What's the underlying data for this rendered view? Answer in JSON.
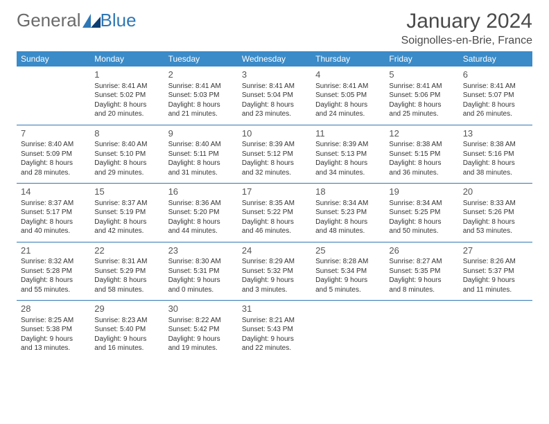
{
  "brand": {
    "part1": "General",
    "part2": "Blue"
  },
  "title": "January 2024",
  "location": "Soignolles-en-Brie, France",
  "colors": {
    "headerBg": "#3b8bc8",
    "rule": "#2f77b6",
    "text": "#333",
    "titleText": "#4a4a4a"
  },
  "weekdays": [
    "Sunday",
    "Monday",
    "Tuesday",
    "Wednesday",
    "Thursday",
    "Friday",
    "Saturday"
  ],
  "weeks": [
    [
      {
        "empty": true
      },
      {
        "day": "1",
        "sunrise": "Sunrise: 8:41 AM",
        "sunset": "Sunset: 5:02 PM",
        "dl1": "Daylight: 8 hours",
        "dl2": "and 20 minutes."
      },
      {
        "day": "2",
        "sunrise": "Sunrise: 8:41 AM",
        "sunset": "Sunset: 5:03 PM",
        "dl1": "Daylight: 8 hours",
        "dl2": "and 21 minutes."
      },
      {
        "day": "3",
        "sunrise": "Sunrise: 8:41 AM",
        "sunset": "Sunset: 5:04 PM",
        "dl1": "Daylight: 8 hours",
        "dl2": "and 23 minutes."
      },
      {
        "day": "4",
        "sunrise": "Sunrise: 8:41 AM",
        "sunset": "Sunset: 5:05 PM",
        "dl1": "Daylight: 8 hours",
        "dl2": "and 24 minutes."
      },
      {
        "day": "5",
        "sunrise": "Sunrise: 8:41 AM",
        "sunset": "Sunset: 5:06 PM",
        "dl1": "Daylight: 8 hours",
        "dl2": "and 25 minutes."
      },
      {
        "day": "6",
        "sunrise": "Sunrise: 8:41 AM",
        "sunset": "Sunset: 5:07 PM",
        "dl1": "Daylight: 8 hours",
        "dl2": "and 26 minutes."
      }
    ],
    [
      {
        "day": "7",
        "sunrise": "Sunrise: 8:40 AM",
        "sunset": "Sunset: 5:09 PM",
        "dl1": "Daylight: 8 hours",
        "dl2": "and 28 minutes."
      },
      {
        "day": "8",
        "sunrise": "Sunrise: 8:40 AM",
        "sunset": "Sunset: 5:10 PM",
        "dl1": "Daylight: 8 hours",
        "dl2": "and 29 minutes."
      },
      {
        "day": "9",
        "sunrise": "Sunrise: 8:40 AM",
        "sunset": "Sunset: 5:11 PM",
        "dl1": "Daylight: 8 hours",
        "dl2": "and 31 minutes."
      },
      {
        "day": "10",
        "sunrise": "Sunrise: 8:39 AM",
        "sunset": "Sunset: 5:12 PM",
        "dl1": "Daylight: 8 hours",
        "dl2": "and 32 minutes."
      },
      {
        "day": "11",
        "sunrise": "Sunrise: 8:39 AM",
        "sunset": "Sunset: 5:13 PM",
        "dl1": "Daylight: 8 hours",
        "dl2": "and 34 minutes."
      },
      {
        "day": "12",
        "sunrise": "Sunrise: 8:38 AM",
        "sunset": "Sunset: 5:15 PM",
        "dl1": "Daylight: 8 hours",
        "dl2": "and 36 minutes."
      },
      {
        "day": "13",
        "sunrise": "Sunrise: 8:38 AM",
        "sunset": "Sunset: 5:16 PM",
        "dl1": "Daylight: 8 hours",
        "dl2": "and 38 minutes."
      }
    ],
    [
      {
        "day": "14",
        "sunrise": "Sunrise: 8:37 AM",
        "sunset": "Sunset: 5:17 PM",
        "dl1": "Daylight: 8 hours",
        "dl2": "and 40 minutes."
      },
      {
        "day": "15",
        "sunrise": "Sunrise: 8:37 AM",
        "sunset": "Sunset: 5:19 PM",
        "dl1": "Daylight: 8 hours",
        "dl2": "and 42 minutes."
      },
      {
        "day": "16",
        "sunrise": "Sunrise: 8:36 AM",
        "sunset": "Sunset: 5:20 PM",
        "dl1": "Daylight: 8 hours",
        "dl2": "and 44 minutes."
      },
      {
        "day": "17",
        "sunrise": "Sunrise: 8:35 AM",
        "sunset": "Sunset: 5:22 PM",
        "dl1": "Daylight: 8 hours",
        "dl2": "and 46 minutes."
      },
      {
        "day": "18",
        "sunrise": "Sunrise: 8:34 AM",
        "sunset": "Sunset: 5:23 PM",
        "dl1": "Daylight: 8 hours",
        "dl2": "and 48 minutes."
      },
      {
        "day": "19",
        "sunrise": "Sunrise: 8:34 AM",
        "sunset": "Sunset: 5:25 PM",
        "dl1": "Daylight: 8 hours",
        "dl2": "and 50 minutes."
      },
      {
        "day": "20",
        "sunrise": "Sunrise: 8:33 AM",
        "sunset": "Sunset: 5:26 PM",
        "dl1": "Daylight: 8 hours",
        "dl2": "and 53 minutes."
      }
    ],
    [
      {
        "day": "21",
        "sunrise": "Sunrise: 8:32 AM",
        "sunset": "Sunset: 5:28 PM",
        "dl1": "Daylight: 8 hours",
        "dl2": "and 55 minutes."
      },
      {
        "day": "22",
        "sunrise": "Sunrise: 8:31 AM",
        "sunset": "Sunset: 5:29 PM",
        "dl1": "Daylight: 8 hours",
        "dl2": "and 58 minutes."
      },
      {
        "day": "23",
        "sunrise": "Sunrise: 8:30 AM",
        "sunset": "Sunset: 5:31 PM",
        "dl1": "Daylight: 9 hours",
        "dl2": "and 0 minutes."
      },
      {
        "day": "24",
        "sunrise": "Sunrise: 8:29 AM",
        "sunset": "Sunset: 5:32 PM",
        "dl1": "Daylight: 9 hours",
        "dl2": "and 3 minutes."
      },
      {
        "day": "25",
        "sunrise": "Sunrise: 8:28 AM",
        "sunset": "Sunset: 5:34 PM",
        "dl1": "Daylight: 9 hours",
        "dl2": "and 5 minutes."
      },
      {
        "day": "26",
        "sunrise": "Sunrise: 8:27 AM",
        "sunset": "Sunset: 5:35 PM",
        "dl1": "Daylight: 9 hours",
        "dl2": "and 8 minutes."
      },
      {
        "day": "27",
        "sunrise": "Sunrise: 8:26 AM",
        "sunset": "Sunset: 5:37 PM",
        "dl1": "Daylight: 9 hours",
        "dl2": "and 11 minutes."
      }
    ],
    [
      {
        "day": "28",
        "sunrise": "Sunrise: 8:25 AM",
        "sunset": "Sunset: 5:38 PM",
        "dl1": "Daylight: 9 hours",
        "dl2": "and 13 minutes."
      },
      {
        "day": "29",
        "sunrise": "Sunrise: 8:23 AM",
        "sunset": "Sunset: 5:40 PM",
        "dl1": "Daylight: 9 hours",
        "dl2": "and 16 minutes."
      },
      {
        "day": "30",
        "sunrise": "Sunrise: 8:22 AM",
        "sunset": "Sunset: 5:42 PM",
        "dl1": "Daylight: 9 hours",
        "dl2": "and 19 minutes."
      },
      {
        "day": "31",
        "sunrise": "Sunrise: 8:21 AM",
        "sunset": "Sunset: 5:43 PM",
        "dl1": "Daylight: 9 hours",
        "dl2": "and 22 minutes."
      },
      {
        "empty": true
      },
      {
        "empty": true
      },
      {
        "empty": true
      }
    ]
  ]
}
